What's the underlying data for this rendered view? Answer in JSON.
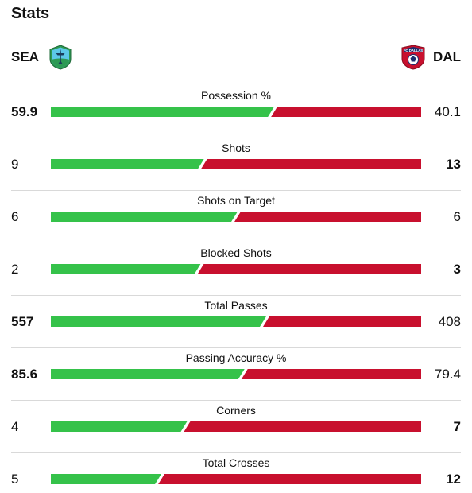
{
  "header": {
    "title": "Stats"
  },
  "teams": {
    "home": {
      "abbr": "SEA",
      "logo_icon": "seattle-sounders-logo-icon",
      "bar_color": "#35c24a"
    },
    "away": {
      "abbr": "DAL",
      "logo_icon": "fc-dallas-logo-icon",
      "logo_text": "FC DALLAS",
      "bar_color": "#c8102e"
    }
  },
  "stats": [
    {
      "label": "Possession %",
      "home": "59.9",
      "away": "40.1",
      "home_value": 59.9,
      "away_value": 40.1,
      "bold": "home"
    },
    {
      "label": "Shots",
      "home": "9",
      "away": "13",
      "home_value": 9,
      "away_value": 13,
      "bold": "away"
    },
    {
      "label": "Shots on Target",
      "home": "6",
      "away": "6",
      "home_value": 6,
      "away_value": 6,
      "bold": "none"
    },
    {
      "label": "Blocked Shots",
      "home": "2",
      "away": "3",
      "home_value": 2,
      "away_value": 3,
      "bold": "away"
    },
    {
      "label": "Total Passes",
      "home": "557",
      "away": "408",
      "home_value": 557,
      "away_value": 408,
      "bold": "home"
    },
    {
      "label": "Passing Accuracy %",
      "home": "85.6",
      "away": "79.4",
      "home_value": 85.6,
      "away_value": 79.4,
      "bold": "home"
    },
    {
      "label": "Corners",
      "home": "4",
      "away": "7",
      "home_value": 4,
      "away_value": 7,
      "bold": "away"
    },
    {
      "label": "Total Crosses",
      "home": "5",
      "away": "12",
      "home_value": 5,
      "away_value": 12,
      "bold": "away"
    }
  ]
}
